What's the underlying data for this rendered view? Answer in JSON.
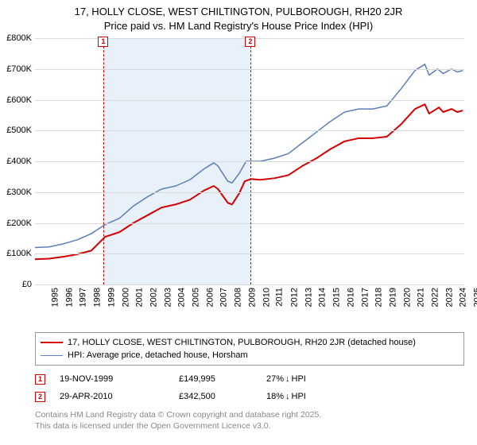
{
  "title_line1": "17, HOLLY CLOSE, WEST CHILTINGTON, PULBOROUGH, RH20 2JR",
  "title_line2": "Price paid vs. HM Land Registry's House Price Index (HPI)",
  "chart": {
    "type": "line",
    "background_color": "#ffffff",
    "grid_color": "#d9d9d9",
    "shade_color": "#e8f0fa",
    "x_start": 1995,
    "x_end": 2025.5,
    "x_ticks": [
      1995,
      1996,
      1997,
      1998,
      1999,
      2000,
      2001,
      2002,
      2003,
      2004,
      2005,
      2006,
      2007,
      2008,
      2009,
      2010,
      2011,
      2012,
      2013,
      2014,
      2015,
      2016,
      2017,
      2018,
      2019,
      2020,
      2021,
      2022,
      2023,
      2024,
      2025
    ],
    "y_min": 0,
    "y_max": 800000,
    "y_ticks": [
      0,
      100000,
      200000,
      300000,
      400000,
      500000,
      600000,
      700000,
      800000
    ],
    "y_tick_labels": [
      "£0",
      "£100K",
      "£200K",
      "£300K",
      "£400K",
      "£500K",
      "£600K",
      "£700K",
      "£800K"
    ],
    "tick_fontsize": 11,
    "shade_from": 1999.88,
    "shade_to": 2010.33,
    "series": [
      {
        "name": "property",
        "color": "#d40000",
        "width": 2,
        "label": "17, HOLLY CLOSE, WEST CHILTINGTON, PULBOROUGH, RH20 2JR (detached house)",
        "points": [
          [
            1995,
            82000
          ],
          [
            1996,
            84000
          ],
          [
            1997,
            90000
          ],
          [
            1998,
            98000
          ],
          [
            1999,
            110000
          ],
          [
            1999.88,
            149995
          ],
          [
            2000,
            155000
          ],
          [
            2001,
            170000
          ],
          [
            2002,
            200000
          ],
          [
            2003,
            225000
          ],
          [
            2004,
            250000
          ],
          [
            2005,
            260000
          ],
          [
            2006,
            275000
          ],
          [
            2007,
            305000
          ],
          [
            2007.7,
            320000
          ],
          [
            2008,
            310000
          ],
          [
            2008.7,
            265000
          ],
          [
            2009,
            260000
          ],
          [
            2009.5,
            295000
          ],
          [
            2009.9,
            335000
          ],
          [
            2010.33,
            342500
          ],
          [
            2011,
            340000
          ],
          [
            2012,
            345000
          ],
          [
            2013,
            355000
          ],
          [
            2014,
            385000
          ],
          [
            2015,
            410000
          ],
          [
            2016,
            440000
          ],
          [
            2017,
            465000
          ],
          [
            2018,
            475000
          ],
          [
            2019,
            475000
          ],
          [
            2020,
            480000
          ],
          [
            2021,
            520000
          ],
          [
            2022,
            570000
          ],
          [
            2022.7,
            585000
          ],
          [
            2023,
            555000
          ],
          [
            2023.7,
            575000
          ],
          [
            2024,
            560000
          ],
          [
            2024.6,
            570000
          ],
          [
            2025,
            560000
          ],
          [
            2025.4,
            565000
          ]
        ]
      },
      {
        "name": "hpi",
        "color": "#5b7fb9",
        "width": 1.5,
        "label": "HPI: Average price, detached house, Horsham",
        "points": [
          [
            1995,
            120000
          ],
          [
            1996,
            122000
          ],
          [
            1997,
            132000
          ],
          [
            1998,
            145000
          ],
          [
            1999,
            165000
          ],
          [
            2000,
            195000
          ],
          [
            2001,
            215000
          ],
          [
            2002,
            255000
          ],
          [
            2003,
            285000
          ],
          [
            2004,
            310000
          ],
          [
            2005,
            320000
          ],
          [
            2006,
            340000
          ],
          [
            2007,
            375000
          ],
          [
            2007.7,
            395000
          ],
          [
            2008,
            385000
          ],
          [
            2008.7,
            335000
          ],
          [
            2009,
            330000
          ],
          [
            2009.5,
            360000
          ],
          [
            2010,
            400000
          ],
          [
            2011,
            400000
          ],
          [
            2012,
            410000
          ],
          [
            2013,
            425000
          ],
          [
            2014,
            460000
          ],
          [
            2015,
            495000
          ],
          [
            2016,
            530000
          ],
          [
            2017,
            560000
          ],
          [
            2018,
            570000
          ],
          [
            2019,
            570000
          ],
          [
            2020,
            580000
          ],
          [
            2021,
            635000
          ],
          [
            2022,
            695000
          ],
          [
            2022.7,
            715000
          ],
          [
            2023,
            680000
          ],
          [
            2023.6,
            700000
          ],
          [
            2024,
            685000
          ],
          [
            2024.6,
            700000
          ],
          [
            2025,
            690000
          ],
          [
            2025.4,
            695000
          ]
        ]
      }
    ],
    "markers": [
      {
        "num": "1",
        "x": 1999.88,
        "color": "#d40000"
      },
      {
        "num": "2",
        "x": 2010.33,
        "color": "#d40000"
      }
    ]
  },
  "sales": [
    {
      "num": "1",
      "date": "19-NOV-1999",
      "price": "£149,995",
      "diff_pct": "27%",
      "diff_dir": "↓",
      "diff_suffix": "HPI",
      "color": "#d40000"
    },
    {
      "num": "2",
      "date": "29-APR-2010",
      "price": "£342,500",
      "diff_pct": "18%",
      "diff_dir": "↓",
      "diff_suffix": "HPI",
      "color": "#d40000"
    }
  ],
  "attribution_line1": "Contains HM Land Registry data © Crown copyright and database right 2025.",
  "attribution_line2": "This data is licensed under the Open Government Licence v3.0."
}
